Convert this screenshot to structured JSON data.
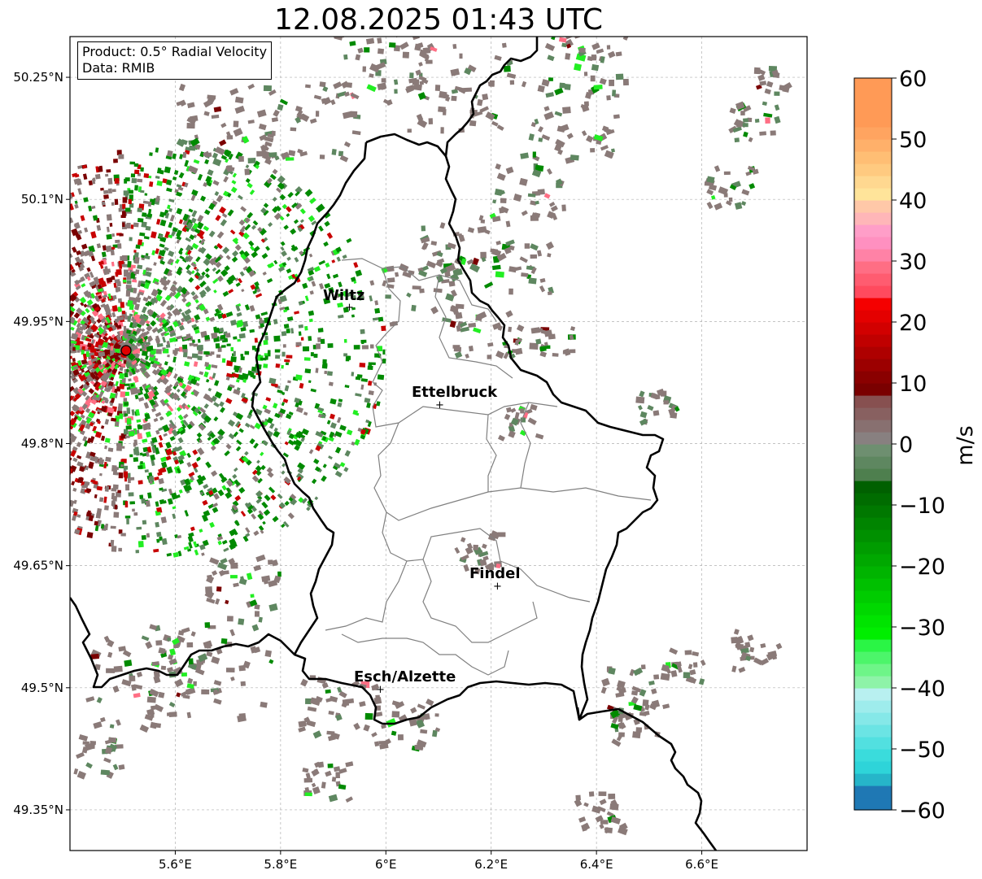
{
  "title": "12.08.2025 01:43 UTC",
  "info_box": {
    "product": "Product: 0.5° Radial Velocity",
    "source": "Data: RMIB"
  },
  "map": {
    "lon_range": [
      5.4,
      6.8
    ],
    "lat_range": [
      49.3,
      50.3
    ],
    "lon_ticks": [
      5.6,
      5.8,
      6.0,
      6.2,
      6.4,
      6.6
    ],
    "lon_tick_labels": [
      "5.6°E",
      "5.8°E",
      "6°E",
      "6.2°E",
      "6.4°E",
      "6.6°E"
    ],
    "lat_ticks": [
      50.25,
      50.1,
      49.95,
      49.8,
      49.65,
      49.5,
      49.35
    ],
    "lat_tick_labels": [
      "50.25°N",
      "50.1°N",
      "49.95°N",
      "49.8°N",
      "49.65°N",
      "49.5°N",
      "49.35°N"
    ],
    "grid": "dashed",
    "radar_site": {
      "lon": 5.505,
      "lat": 49.914,
      "color": "#e00000"
    },
    "cities": [
      {
        "name": "Wiltz",
        "lon": 5.93,
        "lat": 49.966
      },
      {
        "name": "Ettelbruck",
        "lon": 6.1,
        "lat": 49.85
      },
      {
        "name": "Findel",
        "lon": 6.21,
        "lat": 49.627
      },
      {
        "name": "Esch/Alzette",
        "lon": 5.99,
        "lat": 49.5
      }
    ],
    "national_border_color": "#000000",
    "canton_border_color": "#808080"
  },
  "colorbar": {
    "label": "m/s",
    "min": -60,
    "max": 60,
    "ticks": [
      60,
      50,
      40,
      30,
      20,
      10,
      0,
      -10,
      -20,
      -30,
      -40,
      -50,
      -60
    ],
    "tick_labels": [
      "60",
      "50",
      "40",
      "30",
      "20",
      "10",
      "0",
      "−10",
      "−20",
      "−30",
      "−40",
      "−50",
      "−60"
    ],
    "colors": [
      "#1f78b4",
      "#1f78b4",
      "#26b5c9",
      "#2ed4d9",
      "#3adcdc",
      "#52e0e0",
      "#6be4e4",
      "#85e8e8",
      "#9eecec",
      "#b8f0f0",
      "#8ef3a8",
      "#6ef588",
      "#4cf56a",
      "#2af545",
      "#00ee00",
      "#00e400",
      "#00d800",
      "#00cc00",
      "#00c000",
      "#00b400",
      "#00a800",
      "#009c00",
      "#009000",
      "#008400",
      "#007800",
      "#006c00",
      "#006000",
      "#4e7f4e",
      "#5e8760",
      "#6e8f70",
      "#888080",
      "#887070",
      "#886060",
      "#875050",
      "#7a0000",
      "#8a0000",
      "#9c0000",
      "#ae0000",
      "#c00000",
      "#d20000",
      "#e40000",
      "#f50000",
      "#ff4a5e",
      "#ff5c70",
      "#ff6e84",
      "#ff82a6",
      "#ff90c0",
      "#ff9ec8",
      "#ffb6b8",
      "#ffc8a8",
      "#ffe49a",
      "#ffd890",
      "#ffca80",
      "#ffbe74",
      "#ffb06a",
      "#ffa460",
      "#ff9a56",
      "#ff9a56",
      "#ff9a56",
      "#ff9a56"
    ]
  },
  "velocity_palette": {
    "receding_gray": "#8a7a78",
    "receding_green_gray": "#5e8760",
    "approaching_green": "#008a00",
    "bright_green": "#22ee22",
    "dark_red": "#7a0000",
    "red": "#c80000",
    "pink": "#ff6e84"
  }
}
